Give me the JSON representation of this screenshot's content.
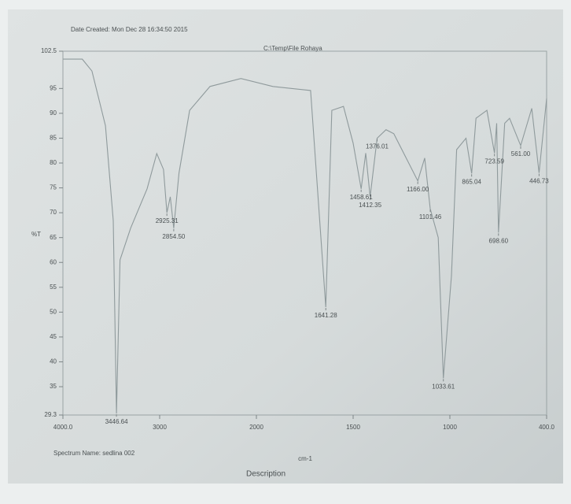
{
  "chart_data": {
    "type": "line",
    "title": "Date Created: Mon Dec 28 16:34:50 2015",
    "subtitle": "C:\\Temp\\File Rohaya",
    "ylabel": "%T",
    "xlabel": "cm-1",
    "footer_name": "Spectrum Name: sedlina 002",
    "footer_description": "Description",
    "color": "#8f9a9c",
    "xlim": [
      4000,
      400
    ],
    "xticks": [
      {
        "value": 4000,
        "label": "4000.0"
      },
      3000,
      2000,
      1500,
      1000,
      {
        "value": 400,
        "label": "400.0"
      }
    ],
    "ylim": [
      29.3,
      102.5
    ],
    "yticks": [
      29.3,
      35,
      40,
      45,
      50,
      55,
      60,
      65,
      70,
      75,
      80,
      85,
      90,
      95,
      102.5
    ],
    "x": [
      4000,
      3800,
      3700,
      3560,
      3480,
      3446.64,
      3410,
      3300,
      3130,
      3030,
      2960,
      2925.31,
      2890,
      2854.5,
      2800,
      2690,
      2480,
      2160,
      1915,
      1720,
      1641.28,
      1610,
      1550,
      1500,
      1458.61,
      1435,
      1412.35,
      1376.01,
      1330,
      1290,
      1166,
      1130,
      1101.46,
      1060,
      1033.61,
      990,
      958,
      900,
      865.04,
      838,
      770,
      723.59,
      710,
      698.6,
      660,
      630,
      561,
      492,
      446.73,
      400
    ],
    "values": [
      100.9,
      100.9,
      98.5,
      87.5,
      68.4,
      29.6,
      60.5,
      66.9,
      74.8,
      81.9,
      78.7,
      70,
      73.2,
      66.9,
      78,
      90.6,
      95.4,
      97,
      95.4,
      94.6,
      51,
      90.6,
      91.4,
      84,
      74.8,
      82,
      73.2,
      85,
      86.7,
      85.9,
      76.4,
      81,
      70.8,
      65,
      36.7,
      57.3,
      82.7,
      85,
      77.9,
      89,
      90.6,
      82,
      88,
      66,
      88,
      89,
      83.5,
      91,
      78,
      93
    ],
    "peaks": [
      {
        "x": 3446.64,
        "y": 29.6,
        "label": "3446.64"
      },
      {
        "x": 2925.31,
        "y": 70,
        "label": "2925.31"
      },
      {
        "x": 2854.5,
        "y": 66.9,
        "label": "2854.50"
      },
      {
        "x": 1641.28,
        "y": 51,
        "label": "1641.28"
      },
      {
        "x": 1458.61,
        "y": 74.8,
        "label": "1458.61"
      },
      {
        "x": 1412.35,
        "y": 73.2,
        "label": "1412.35"
      },
      {
        "x": 1376.01,
        "y": 85,
        "label": "1376.01"
      },
      {
        "x": 1166,
        "y": 76.4,
        "label": "1166.00"
      },
      {
        "x": 1101.46,
        "y": 70.8,
        "label": "1101.46"
      },
      {
        "x": 1033.61,
        "y": 36.7,
        "label": "1033.61"
      },
      {
        "x": 865.04,
        "y": 77.9,
        "label": "865.04"
      },
      {
        "x": 723.59,
        "y": 82,
        "label": "723.59"
      },
      {
        "x": 698.6,
        "y": 66,
        "label": "698.60"
      },
      {
        "x": 561,
        "y": 83.5,
        "label": "561.00"
      },
      {
        "x": 446.73,
        "y": 78,
        "label": "446.73"
      }
    ]
  }
}
